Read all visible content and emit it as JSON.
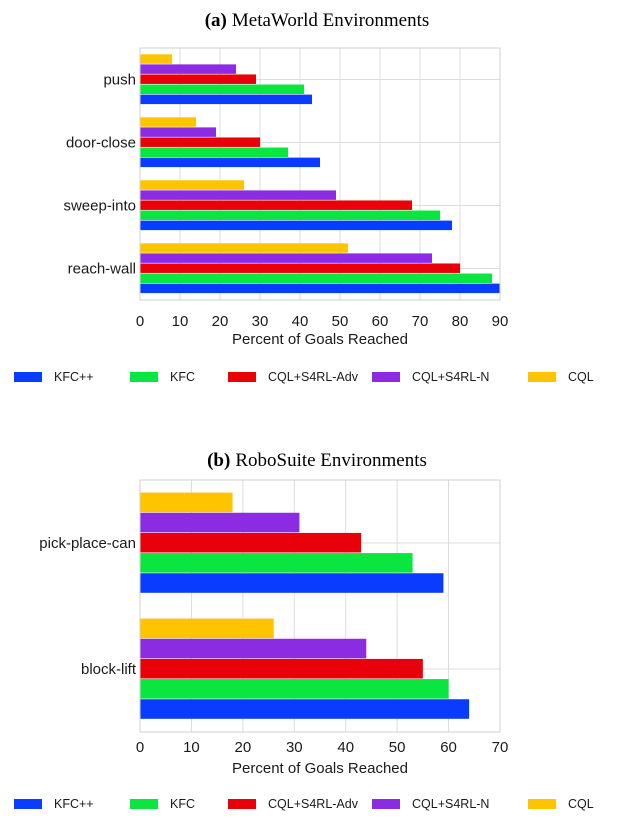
{
  "colors": {
    "KFC++": "#0a3cff",
    "KFC": "#0be53f",
    "CQL+S4RL-Adv": "#e8000b",
    "CQL+S4RL-N": "#8b2be2",
    "CQL": "#ffc400"
  },
  "chart_data": [
    {
      "type": "bar",
      "orientation": "horizontal",
      "title_prefix": "(a)",
      "title": "MetaWorld Environments",
      "xlabel": "Percent of Goals Reached",
      "ylabel": "",
      "xlim": [
        0,
        90
      ],
      "xticks": [
        0,
        10,
        20,
        30,
        40,
        50,
        60,
        70,
        80,
        90
      ],
      "categories": [
        "push",
        "door-close",
        "sweep-into",
        "reach-wall"
      ],
      "series": [
        {
          "name": "KFC++",
          "values": [
            43,
            45,
            78,
            90
          ]
        },
        {
          "name": "KFC",
          "values": [
            41,
            37,
            75,
            88
          ]
        },
        {
          "name": "CQL+S4RL-Adv",
          "values": [
            29,
            30,
            68,
            80
          ]
        },
        {
          "name": "CQL+S4RL-N",
          "values": [
            24,
            19,
            49,
            73
          ]
        },
        {
          "name": "CQL",
          "values": [
            8,
            14,
            26,
            52
          ]
        }
      ],
      "grid": true,
      "legend": "bottom"
    },
    {
      "type": "bar",
      "orientation": "horizontal",
      "title_prefix": "(b)",
      "title": "RoboSuite Environments",
      "xlabel": "Percent of Goals Reached",
      "ylabel": "",
      "xlim": [
        0,
        70
      ],
      "xticks": [
        0,
        10,
        20,
        30,
        40,
        50,
        60,
        70
      ],
      "categories": [
        "pick-place-can",
        "block-lift"
      ],
      "series": [
        {
          "name": "KFC++",
          "values": [
            59,
            64
          ]
        },
        {
          "name": "KFC",
          "values": [
            53,
            60
          ]
        },
        {
          "name": "CQL+S4RL-Adv",
          "values": [
            43,
            55
          ]
        },
        {
          "name": "CQL+S4RL-N",
          "values": [
            31,
            44
          ]
        },
        {
          "name": "CQL",
          "values": [
            18,
            26
          ]
        }
      ],
      "grid": true,
      "legend": "bottom"
    }
  ]
}
